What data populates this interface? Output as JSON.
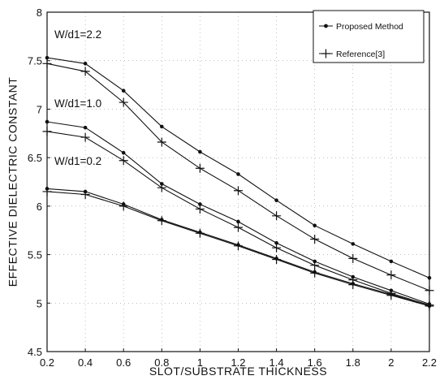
{
  "chart_data": {
    "type": "line",
    "title": "",
    "xlabel": "SLOT/SUBSTRATE THICKNESS",
    "ylabel": "EFFECTIVE DIELECTRIC CONSTANT",
    "xlim": [
      0.2,
      2.2
    ],
    "ylim": [
      4.5,
      8
    ],
    "x_ticks": [
      "0.2",
      "0.4",
      "0.6",
      "0.8",
      "1",
      "1.2",
      "1.4",
      "1.6",
      "1.8",
      "2",
      "2.2"
    ],
    "y_ticks": [
      "4.5",
      "5",
      "5.5",
      "6",
      "6.5",
      "7",
      "7.5",
      "8"
    ],
    "grid": true,
    "legend_position": "top-right",
    "legend": [
      {
        "label": "Proposed Method",
        "marker": "dot"
      },
      {
        "label": "Reference[3]",
        "marker": "plus"
      }
    ],
    "x": [
      0.2,
      0.4,
      0.6,
      0.8,
      1.0,
      1.2,
      1.4,
      1.6,
      1.8,
      2.0,
      2.2
    ],
    "annotations": [
      "W/d1=2.2",
      "W/d1=1.0",
      "W/d1=0.2"
    ],
    "series": [
      {
        "name": "Proposed Method",
        "group": "W/d1=2.2",
        "marker": "dot",
        "values": [
          7.53,
          7.47,
          7.19,
          6.82,
          6.56,
          6.33,
          6.06,
          5.8,
          5.61,
          5.43,
          5.26
        ]
      },
      {
        "name": "Reference[3]",
        "group": "W/d1=2.2",
        "marker": "plus",
        "values": [
          7.47,
          7.39,
          7.07,
          6.66,
          6.39,
          6.16,
          5.9,
          5.66,
          5.46,
          5.29,
          5.13
        ]
      },
      {
        "name": "Proposed Method",
        "group": "W/d1=1.0",
        "marker": "dot",
        "values": [
          6.87,
          6.81,
          6.55,
          6.23,
          6.02,
          5.84,
          5.62,
          5.43,
          5.27,
          5.13,
          4.99
        ]
      },
      {
        "name": "Reference[3]",
        "group": "W/d1=1.0",
        "marker": "plus",
        "values": [
          6.77,
          6.71,
          6.47,
          6.19,
          5.97,
          5.78,
          5.57,
          5.39,
          5.24,
          5.1,
          4.98
        ]
      },
      {
        "name": "Proposed Method",
        "group": "W/d1=0.2",
        "marker": "dot",
        "values": [
          6.18,
          6.15,
          6.02,
          5.86,
          5.73,
          5.6,
          5.46,
          5.32,
          5.2,
          5.09,
          4.97
        ]
      },
      {
        "name": "Reference[3]",
        "group": "W/d1=0.2",
        "marker": "plus",
        "values": [
          6.15,
          6.12,
          6.0,
          5.85,
          5.72,
          5.59,
          5.45,
          5.31,
          5.19,
          5.08,
          4.97
        ]
      }
    ]
  }
}
